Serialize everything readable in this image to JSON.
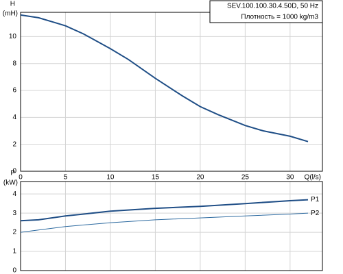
{
  "chart_data": [
    {
      "type": "line",
      "title": "SEV.100.100.30.4.50D, 50 Hz",
      "subtitle": "Плотность = 1000 kg/m3",
      "ylabel": "H",
      "yunit": "(mH)",
      "xlabel": "Q(l/s)",
      "x": [
        0,
        2,
        4,
        5,
        7,
        10,
        12,
        15,
        18,
        20,
        22,
        25,
        27,
        30,
        32
      ],
      "series": [
        {
          "color": "#1f4e86",
          "values": [
            11.6,
            11.4,
            11.0,
            10.8,
            10.2,
            9.1,
            8.3,
            6.9,
            5.6,
            4.8,
            4.2,
            3.4,
            3.0,
            2.6,
            2.2
          ]
        }
      ],
      "xlim": [
        0,
        33.6
      ],
      "xticks": [
        0,
        5,
        10,
        15,
        20,
        25,
        30
      ],
      "ylim": [
        0,
        11.8
      ],
      "yticks": [
        0,
        2,
        4,
        6,
        8,
        10
      ],
      "grid": true,
      "x_tick_labels": true
    },
    {
      "type": "line",
      "ylabel": "P",
      "yunit": "(kW)",
      "x": [
        0,
        2,
        5,
        10,
        15,
        20,
        25,
        30,
        32
      ],
      "series": [
        {
          "name": "P1",
          "color": "#1f4e86",
          "width": 2,
          "values": [
            2.6,
            2.65,
            2.85,
            3.1,
            3.25,
            3.35,
            3.5,
            3.65,
            3.7
          ]
        },
        {
          "name": "P2",
          "color": "#2d6aa0",
          "width": 1,
          "values": [
            2.0,
            2.12,
            2.3,
            2.5,
            2.65,
            2.75,
            2.85,
            2.95,
            3.0
          ]
        }
      ],
      "xlim": [
        0,
        33.6
      ],
      "xticks": [
        0,
        5,
        10,
        15,
        20,
        25,
        30
      ],
      "ylim": [
        0,
        4.65
      ],
      "yticks": [
        0,
        1,
        2,
        3,
        4
      ],
      "grid": true,
      "x_tick_labels": false
    }
  ]
}
